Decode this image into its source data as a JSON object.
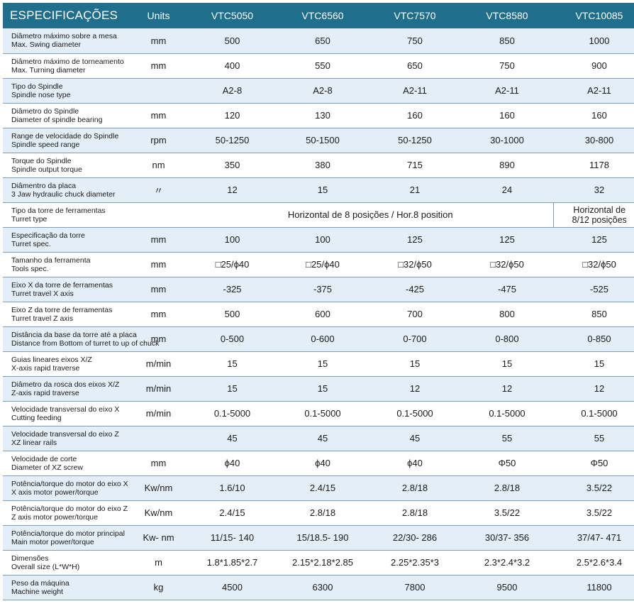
{
  "header": {
    "title": "ESPECIFICAÇÕES",
    "units": "Units",
    "models": [
      "VTC5050",
      "VTC6560",
      "VTC7570",
      "VTC8580",
      "VTC10085"
    ]
  },
  "rows": [
    {
      "pt": "Diâmetro máximo sobre a mesa",
      "en": "Max. Swing diameter",
      "unit": "mm",
      "values": [
        "500",
        "650",
        "750",
        "850",
        "1000"
      ]
    },
    {
      "pt": "Diâmetro máximo de torneamento",
      "en": "Max. Turning diameter",
      "unit": "mm",
      "values": [
        "400",
        "550",
        "650",
        "750",
        "900"
      ]
    },
    {
      "pt": "Tipo do Spindle",
      "en": "Spindle nose type",
      "unit": "",
      "values": [
        "A2-8",
        "A2-8",
        "A2-11",
        "A2-11",
        "A2-11"
      ]
    },
    {
      "pt": "Diâmetro do Spindle",
      "en": "Diameter of spindle bearing",
      "unit": "mm",
      "values": [
        "120",
        "130",
        "160",
        "160",
        "160"
      ]
    },
    {
      "pt": "Range de velocidade do Spindle",
      "en": "Spindle speed range",
      "unit": "rpm",
      "values": [
        "50-1250",
        "50-1500",
        "50-1250",
        "30-1000",
        "30-800"
      ]
    },
    {
      "pt": "Torque do Spindle",
      "en": "Spindle output torque",
      "unit": "nm",
      "values": [
        "350",
        "380",
        "715",
        "890",
        "1178"
      ]
    },
    {
      "pt": "Diâmentro da placa",
      "en": "3 Jaw hydraulic chuck diameter",
      "unit": "〃",
      "values": [
        "12",
        "15",
        "21",
        "24",
        "32"
      ]
    },
    {
      "pt": "Tipo da torre de ferramentas",
      "en": "Turret type",
      "unit": "",
      "span_value": "Horizontal de 8 posições / Hor.8 position",
      "last_line1": "Horizontal de",
      "last_line2": "8/12 posições"
    },
    {
      "pt": "Especificação da torre",
      "en": "Turret spec.",
      "unit": "mm",
      "values": [
        "100",
        "100",
        "125",
        "125",
        "125"
      ]
    },
    {
      "pt": "Tamanho da ferramenta",
      "en": "Tools spec.",
      "unit": "mm",
      "values": [
        "□25/ϕ40",
        "□25/ϕ40",
        "□32/ϕ50",
        "□32/ϕ50",
        "□32/ϕ50"
      ]
    },
    {
      "pt": "Eixo X da torre de ferramentas",
      "en": "Turret travel X axis",
      "unit": "mm",
      "values": [
        "-325",
        "-375",
        "-425",
        "-475",
        "-525"
      ]
    },
    {
      "pt": "Eixo Z da torre de ferramentas",
      "en": "Turret travel Z axis",
      "unit": "mm",
      "values": [
        "500",
        "600",
        "700",
        "800",
        "850"
      ]
    },
    {
      "pt": "Distância da base da torre até a placa",
      "en": "Distance from Bottom of turret to up of chuck",
      "unit": "mm",
      "values": [
        "0-500",
        "0-600",
        "0-700",
        "0-800",
        "0-850"
      ]
    },
    {
      "pt": "Guias lineares eixos X/Z",
      "en": "X-axis rapid traverse",
      "unit": "m/min",
      "values": [
        "15",
        "15",
        "15",
        "15",
        "15"
      ]
    },
    {
      "pt": "Diâmetro da rosca dos eixos X/Z",
      "en": "Z-axis rapid traverse",
      "unit": "m/min",
      "values": [
        "15",
        "15",
        "12",
        "12",
        "12"
      ]
    },
    {
      "pt": "Velocidade transversal do eixo X",
      "en": "Cutting feeding",
      "unit": "m/min",
      "values": [
        "0.1-5000",
        "0.1-5000",
        "0.1-5000",
        "0.1-5000",
        "0.1-5000"
      ]
    },
    {
      "pt": "Velocidade transversal do eixo Z",
      "en": "XZ linear rails",
      "unit": "",
      "values": [
        "45",
        "45",
        "45",
        "55",
        "55"
      ]
    },
    {
      "pt": "Velocidade de corte",
      "en": "Diameter of XZ screw",
      "unit": "mm",
      "values": [
        "ϕ40",
        "ϕ40",
        "ϕ40",
        "Φ50",
        "Φ50"
      ]
    },
    {
      "pt": "Potência/torque do motor do eixo X",
      "en": "X axis motor power/torque",
      "unit": "Kw/nm",
      "values": [
        "1.6/10",
        "2.4/15",
        "2.8/18",
        "2.8/18",
        "3.5/22"
      ]
    },
    {
      "pt": "Potência/torque do motor do eixo Z",
      "en": "Z axis motor power/torque",
      "unit": "Kw/nm",
      "values": [
        "2.4/15",
        "2.8/18",
        "2.8/18",
        "3.5/22",
        "3.5/22"
      ]
    },
    {
      "pt": "Potência/torque do motor principal",
      "en": "Main motor power/torque",
      "unit": "Kw- nm",
      "values": [
        "11/15- 140",
        "15/18.5- 190",
        "22/30- 286",
        "30/37- 356",
        "37/47- 471"
      ]
    },
    {
      "pt": "Dimensões",
      "en": "Overall size (L*W*H)",
      "unit": "m",
      "values": [
        "1.8*1.85*2.7",
        "2.15*2.18*2.85",
        "2.25*2.35*3",
        "2.3*2.4*3.2",
        "2.5*2.6*3.4"
      ]
    },
    {
      "pt": "Peso da máquina",
      "en": "Machine weight",
      "unit": "kg",
      "values": [
        "4500",
        "6300",
        "7800",
        "9500",
        "11800"
      ]
    }
  ]
}
